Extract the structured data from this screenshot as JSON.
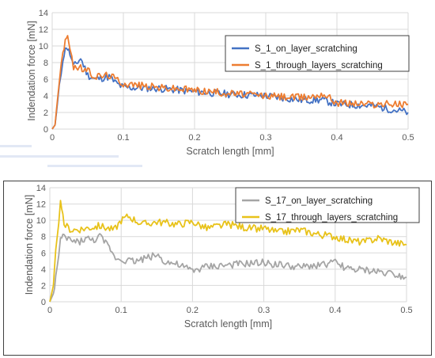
{
  "chart_data": [
    {
      "type": "line",
      "xlabel": "Scratch length [mm]",
      "ylabel": "Indendation force [mN]",
      "xlim": [
        0,
        0.5
      ],
      "ylim": [
        0,
        14
      ],
      "x_ticks": [
        "0",
        "0.1",
        "0.2",
        "0.3",
        "0.4",
        "0.5"
      ],
      "y_ticks": [
        "0",
        "2",
        "4",
        "6",
        "8",
        "10",
        "12",
        "14"
      ],
      "grid": true,
      "legend_position": "top-right",
      "legend_border": true,
      "series": [
        {
          "name": "S_1_on_layer_scratching",
          "color": "#4472C4",
          "points": [
            [
              0.0,
              0
            ],
            [
              0.004,
              0.5
            ],
            [
              0.01,
              5
            ],
            [
              0.015,
              8.5
            ],
            [
              0.02,
              10
            ],
            [
              0.025,
              9
            ],
            [
              0.03,
              7.5
            ],
            [
              0.04,
              8.5
            ],
            [
              0.05,
              6.5
            ],
            [
              0.06,
              6
            ],
            [
              0.08,
              6.3
            ],
            [
              0.09,
              5.5
            ],
            [
              0.1,
              5
            ],
            [
              0.15,
              4.9
            ],
            [
              0.2,
              4.5
            ],
            [
              0.25,
              4.2
            ],
            [
              0.3,
              4
            ],
            [
              0.35,
              3.5
            ],
            [
              0.38,
              3.5
            ],
            [
              0.4,
              3
            ],
            [
              0.45,
              2.8
            ],
            [
              0.5,
              2
            ]
          ]
        },
        {
          "name": "S_1_through_layers_scratching",
          "color": "#ED7D31",
          "points": [
            [
              0.0,
              0
            ],
            [
              0.004,
              0.5
            ],
            [
              0.01,
              6
            ],
            [
              0.015,
              9
            ],
            [
              0.02,
              11.2
            ],
            [
              0.025,
              10
            ],
            [
              0.03,
              7.5
            ],
            [
              0.04,
              7.3
            ],
            [
              0.05,
              7
            ],
            [
              0.06,
              6.3
            ],
            [
              0.08,
              6.5
            ],
            [
              0.1,
              5.5
            ],
            [
              0.15,
              5
            ],
            [
              0.2,
              4.7
            ],
            [
              0.25,
              4.3
            ],
            [
              0.3,
              4
            ],
            [
              0.35,
              3.8
            ],
            [
              0.37,
              4
            ],
            [
              0.38,
              4.3
            ],
            [
              0.4,
              3.2
            ],
            [
              0.45,
              3
            ],
            [
              0.5,
              3
            ]
          ]
        }
      ]
    },
    {
      "type": "line",
      "xlabel": "Scratch length [mm]",
      "ylabel": "Indendation force [mN]",
      "xlim": [
        0,
        0.5
      ],
      "ylim": [
        0,
        14
      ],
      "x_ticks": [
        "0",
        "0.1",
        "0.2",
        "0.3",
        "0.4",
        "0.5"
      ],
      "y_ticks": [
        "0",
        "2",
        "4",
        "6",
        "8",
        "10",
        "12",
        "14"
      ],
      "grid": true,
      "legend_position": "top-right",
      "legend_border": true,
      "series": [
        {
          "name": "S_17_on_layer_scratching",
          "color": "#A5A5A5",
          "points": [
            [
              0.0,
              0
            ],
            [
              0.005,
              1
            ],
            [
              0.01,
              4
            ],
            [
              0.015,
              7.5
            ],
            [
              0.02,
              8
            ],
            [
              0.03,
              7.5
            ],
            [
              0.04,
              7.3
            ],
            [
              0.05,
              7.8
            ],
            [
              0.06,
              7.5
            ],
            [
              0.07,
              8
            ],
            [
              0.08,
              7
            ],
            [
              0.085,
              6.5
            ],
            [
              0.09,
              5.5
            ],
            [
              0.1,
              5.2
            ],
            [
              0.12,
              5
            ],
            [
              0.14,
              5.5
            ],
            [
              0.15,
              5.8
            ],
            [
              0.16,
              5
            ],
            [
              0.18,
              4.5
            ],
            [
              0.2,
              3.8
            ],
            [
              0.22,
              4.3
            ],
            [
              0.25,
              4.5
            ],
            [
              0.3,
              4.8
            ],
            [
              0.35,
              4.2
            ],
            [
              0.4,
              4.8
            ],
            [
              0.42,
              4
            ],
            [
              0.45,
              3.8
            ],
            [
              0.48,
              3.5
            ],
            [
              0.5,
              3
            ]
          ]
        },
        {
          "name": "S_17_through_layers_scratching",
          "color": "#E8C21A",
          "points": [
            [
              0.0,
              0
            ],
            [
              0.005,
              2
            ],
            [
              0.01,
              8
            ],
            [
              0.015,
              12
            ],
            [
              0.02,
              9.5
            ],
            [
              0.03,
              8.8
            ],
            [
              0.05,
              9
            ],
            [
              0.07,
              9.3
            ],
            [
              0.09,
              8.8
            ],
            [
              0.1,
              10
            ],
            [
              0.11,
              10.5
            ],
            [
              0.13,
              9.5
            ],
            [
              0.15,
              9.8
            ],
            [
              0.18,
              9.5
            ],
            [
              0.2,
              9.8
            ],
            [
              0.22,
              9
            ],
            [
              0.25,
              9.5
            ],
            [
              0.28,
              9
            ],
            [
              0.3,
              9
            ],
            [
              0.32,
              8.5
            ],
            [
              0.35,
              8.8
            ],
            [
              0.38,
              8.2
            ],
            [
              0.4,
              8
            ],
            [
              0.42,
              7.5
            ],
            [
              0.44,
              7.3
            ],
            [
              0.46,
              7.8
            ],
            [
              0.48,
              7.3
            ],
            [
              0.5,
              7
            ]
          ]
        }
      ]
    }
  ]
}
